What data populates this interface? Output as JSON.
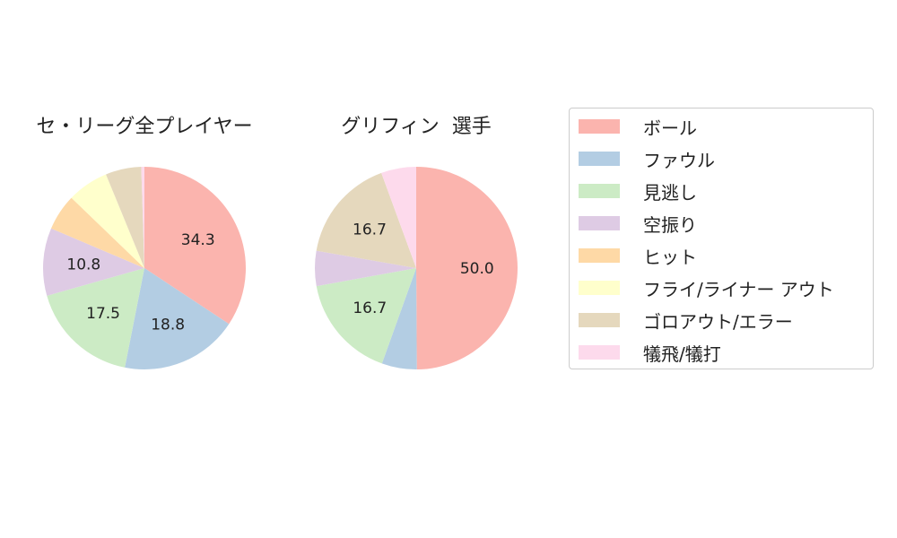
{
  "chart_data": [
    {
      "type": "pie",
      "title": "セ・リーグ全プレイヤー",
      "categories": [
        "ボール",
        "ファウル",
        "見逃し",
        "空振り",
        "ヒット",
        "フライ/ライナー アウト",
        "ゴロアウト/エラー",
        "犠飛/犠打"
      ],
      "values": [
        34.3,
        18.8,
        17.5,
        10.8,
        5.8,
        6.6,
        5.7,
        0.5
      ],
      "data_labels": [
        "34.3",
        "18.8",
        "17.5",
        "10.8",
        "",
        "",
        "",
        ""
      ]
    },
    {
      "type": "pie",
      "title": "グリフィン  選手",
      "categories": [
        "ボール",
        "ファウル",
        "見逃し",
        "空振り",
        "ヒット",
        "フライ/ライナー アウト",
        "ゴロアウト/エラー",
        "犠飛/犠打"
      ],
      "values": [
        50.0,
        5.6,
        16.7,
        5.6,
        0,
        0,
        16.7,
        5.6
      ],
      "data_labels": [
        "50.0",
        "",
        "16.7",
        "",
        "",
        "",
        "16.7",
        ""
      ]
    }
  ],
  "legend": {
    "placement": "right",
    "items": [
      {
        "label": "ボール",
        "color": "#fbb4ae"
      },
      {
        "label": "ファウル",
        "color": "#b3cde3"
      },
      {
        "label": "見逃し",
        "color": "#ccebc5"
      },
      {
        "label": "空振り",
        "color": "#decbe4"
      },
      {
        "label": "ヒット",
        "color": "#fed9a6"
      },
      {
        "label": "フライ/ライナー アウト",
        "color": "#ffffcc"
      },
      {
        "label": "ゴロアウト/エラー",
        "color": "#e5d8bd"
      },
      {
        "label": "犠飛/犠打",
        "color": "#fddaec"
      }
    ]
  }
}
